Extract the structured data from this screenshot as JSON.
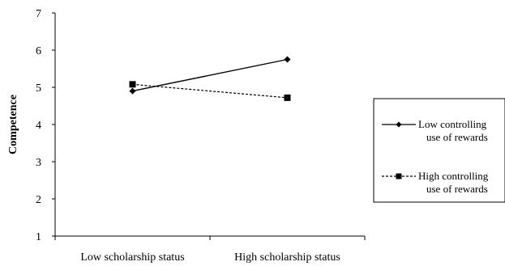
{
  "chart_data": {
    "type": "line",
    "title": "",
    "xlabel": "",
    "ylabel": "Competence",
    "categories": [
      "Low scholarship status",
      "High scholarship status"
    ],
    "ylim": [
      1,
      7
    ],
    "yticks": [
      "1",
      "2",
      "3",
      "4",
      "5",
      "6",
      "7"
    ],
    "grid": false,
    "legend_position": "right",
    "series": [
      {
        "name_line1": "Low controlling",
        "name_line2": "use of rewards",
        "values": [
          4.9,
          5.75
        ],
        "marker": "diamond",
        "line_style": "solid",
        "color": "#000000"
      },
      {
        "name_line1": "High controlling",
        "name_line2": "use of rewards",
        "values": [
          5.08,
          4.72
        ],
        "marker": "square",
        "line_style": "dashed",
        "color": "#000000"
      }
    ]
  }
}
